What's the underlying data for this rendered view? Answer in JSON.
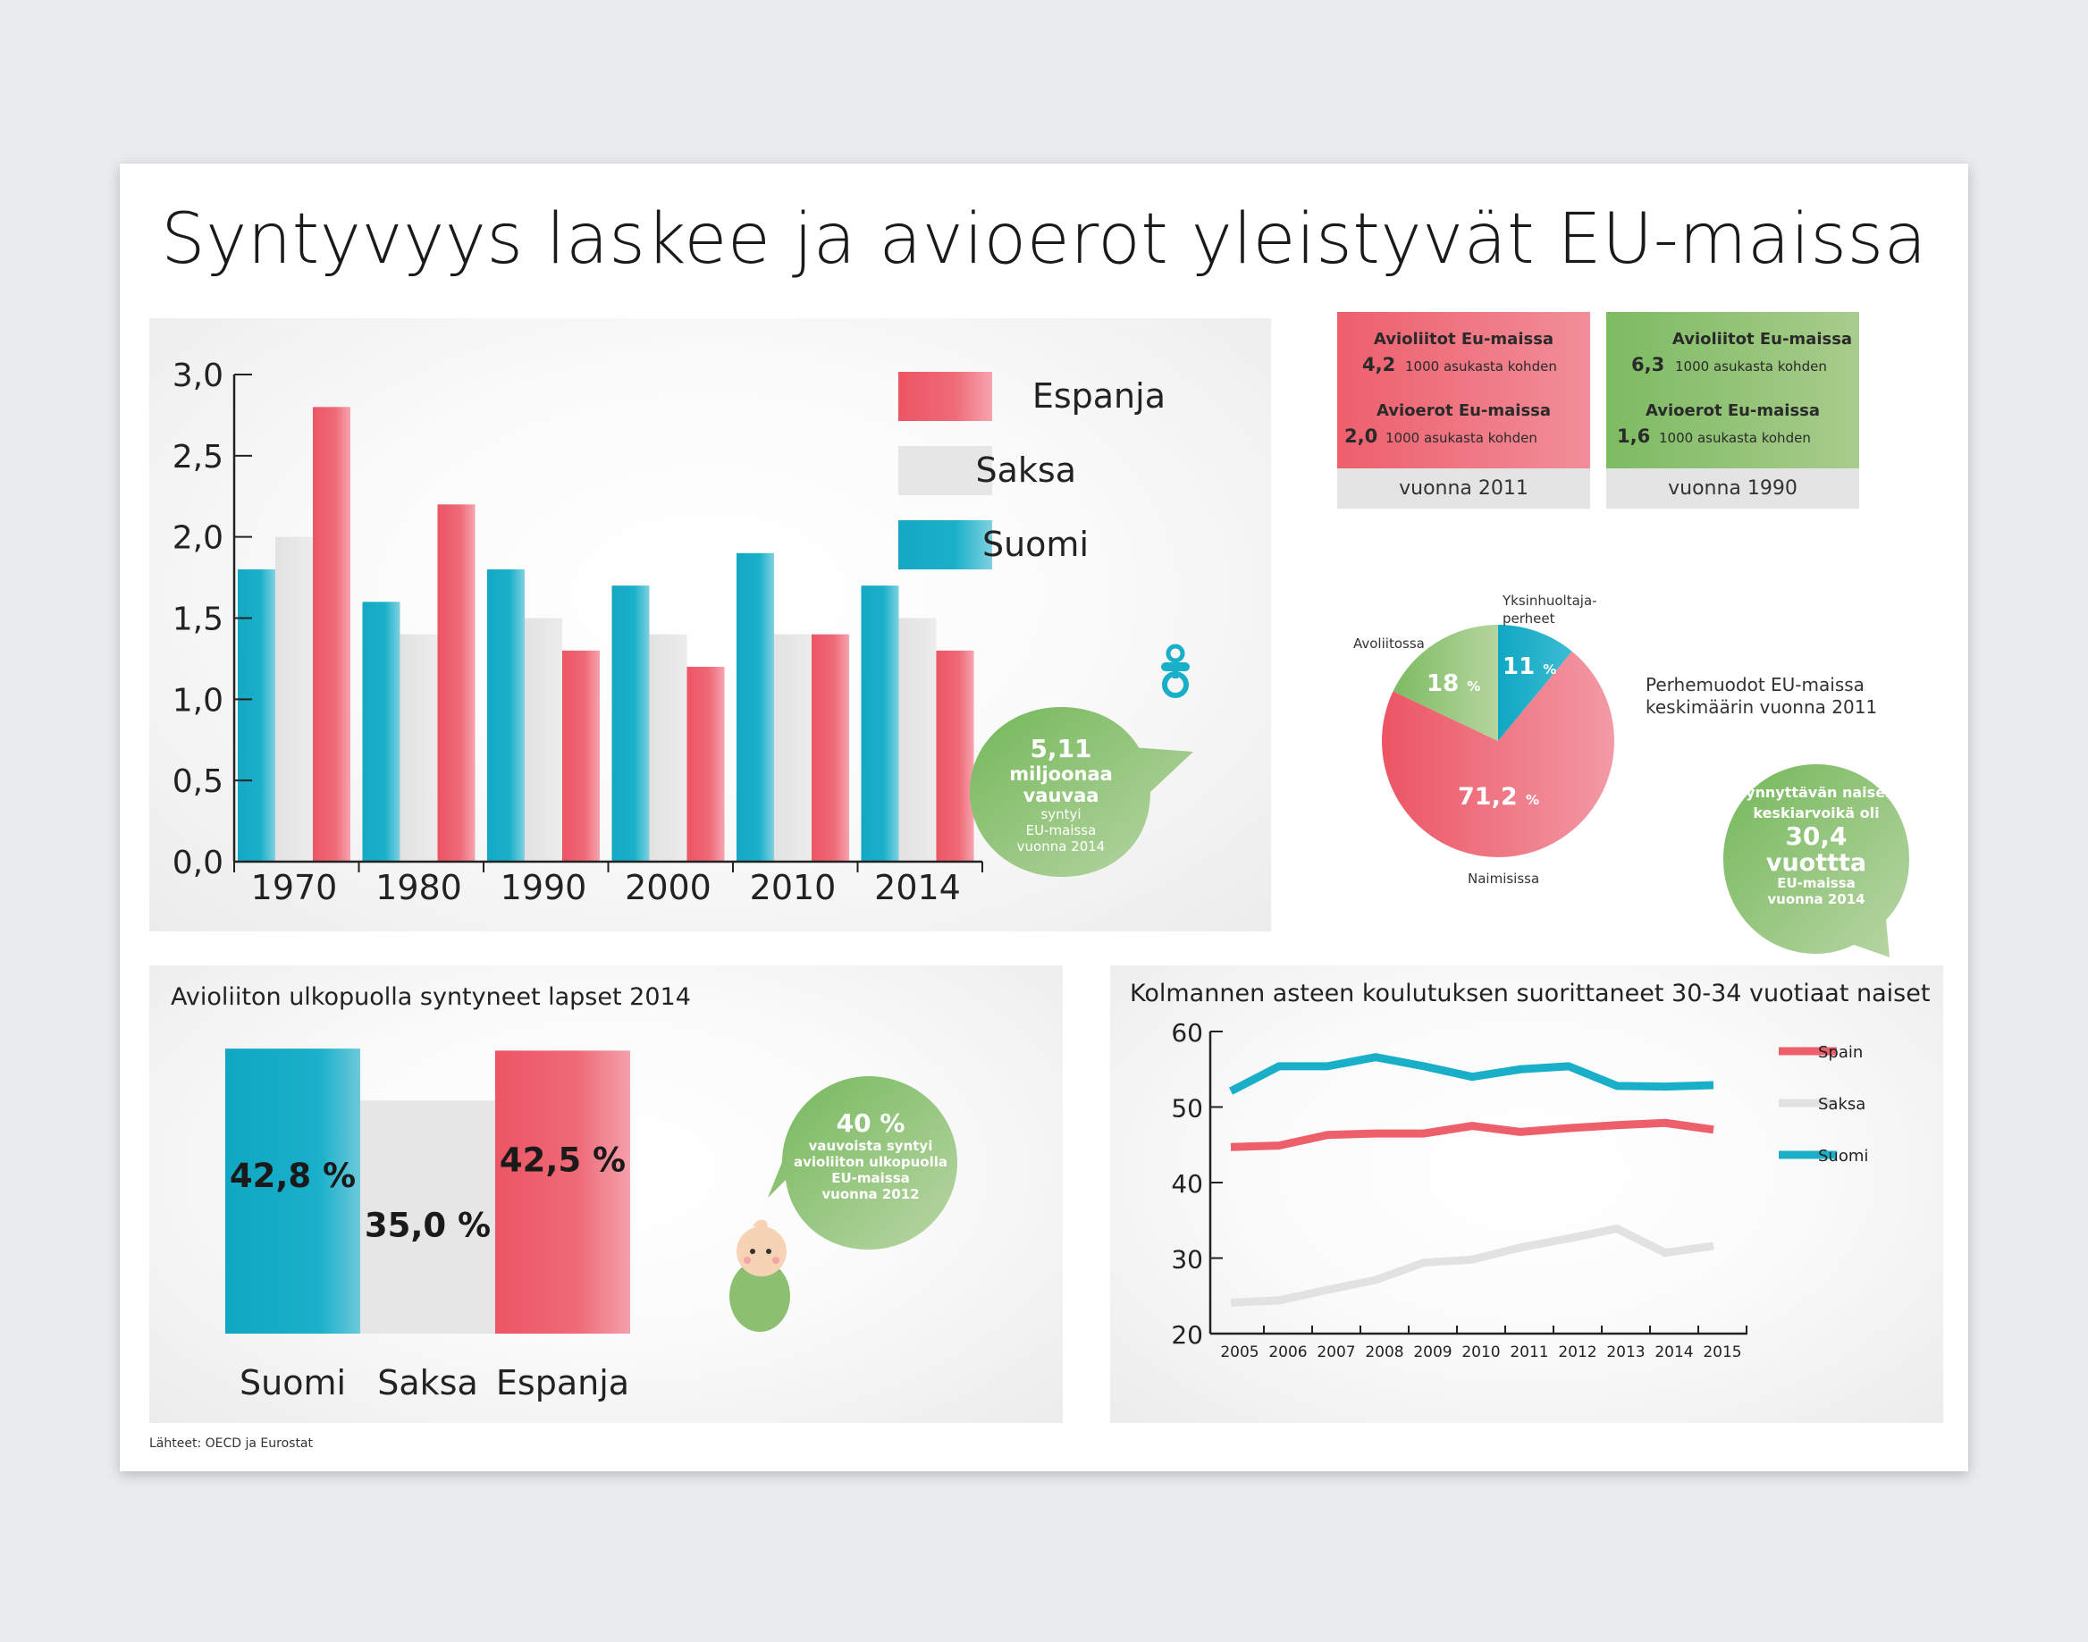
{
  "title": "Syntyvyys laskee ja avioerot yleistyvät EU-maissa",
  "colors": {
    "spain": "#ee5f6c",
    "germany": "#e6e6e6",
    "finland": "#1aafc9",
    "green": "#7dbb62"
  },
  "fertility_legend": [
    "Espanja",
    "Saksa",
    "Suomi"
  ],
  "births_bubble": {
    "value": "5,11",
    "unit": "miljoonaa",
    "word": "vauvaa",
    "line1": "syntyi",
    "line2": "EU-maissa",
    "line3": "vuonna 2014"
  },
  "box_2011": {
    "marriages_title": "Avioliitot Eu-maissa",
    "marriages_value": "4,2",
    "marriages_sub": "1000 asukasta kohden",
    "divorces_title": "Avioerot Eu-maissa",
    "divorces_value": "2,0",
    "divorces_sub": "1000 asukasta kohden",
    "footer": "vuonna 2011"
  },
  "box_1990": {
    "marriages_title": "Avioliitot Eu-maissa",
    "marriages_value": "6,3",
    "marriages_sub": "1000 asukasta kohden",
    "divorces_title": "Avioerot Eu-maissa",
    "divorces_value": "1,6",
    "divorces_sub": "1000 asukasta kohden",
    "footer": "vuonna 1990"
  },
  "family_pie": {
    "caption_line1": "Perhemuodot EU-maissa",
    "caption_line2": "keskimäärin vuonna 2011",
    "label_single_line1": "Yksinhuoltaja-",
    "label_single_line2": "perheet",
    "label_cohab": "Avoliitossa",
    "label_married": "Naimisissa",
    "pct_single": "11",
    "pct_cohab": "18",
    "pct_married": "71,2",
    "pct_sign": "%"
  },
  "mother_bubble": {
    "line1": "synnyttävän naisen",
    "line2": "keskiarvoikä oli",
    "value": "30,4",
    "unit": "vuottta",
    "line3": "EU-maissa",
    "line4": "vuonna 2014"
  },
  "outside_panel": {
    "title": "Avioliiton ulkopuolla syntyneet lapset 2014",
    "labels": [
      "42,8 %",
      "35,0 %",
      "42,5 %"
    ],
    "countries": [
      "Suomi",
      "Saksa",
      "Espanja"
    ]
  },
  "outside_bubble": {
    "value": "40 %",
    "line1": "vauvoista syntyi",
    "line2": "avioliiton ulkopuolla",
    "line3": "EU-maissa",
    "line4": "vuonna 2012"
  },
  "education_panel": {
    "title": "Kolmannen asteen koulutuksen suorittaneet 30-34 vuotiaat naiset"
  },
  "sources": "Lähteet: OECD ja Eurostat",
  "chart_data": [
    {
      "type": "bar",
      "categories": [
        "1970",
        "1980",
        "1990",
        "2000",
        "2010",
        "2014"
      ],
      "series": [
        {
          "name": "Suomi",
          "color": "#1aafc9",
          "values": [
            1.8,
            1.6,
            1.8,
            1.7,
            1.9,
            1.7
          ]
        },
        {
          "name": "Saksa",
          "color": "#e6e6e6",
          "values": [
            2.0,
            1.4,
            1.5,
            1.4,
            1.4,
            1.5
          ]
        },
        {
          "name": "Espanja",
          "color": "#ee5f6c",
          "values": [
            2.8,
            2.2,
            1.3,
            1.2,
            1.4,
            1.3
          ]
        }
      ],
      "yticks": [
        "0,0",
        "0,5",
        "1,0",
        "1,5",
        "2,0",
        "2,5",
        "3,0"
      ],
      "ylim": [
        0,
        3
      ],
      "legend": "right"
    },
    {
      "type": "pie",
      "labels": [
        "Yksinhuoltajaperheet",
        "Naimisissa",
        "Avoliitossa"
      ],
      "values": [
        11,
        71.2,
        18
      ],
      "colors": [
        "#1aafc9",
        "#ee5f6c",
        "#8cc070"
      ]
    },
    {
      "type": "bar",
      "categories": [
        "Suomi",
        "Saksa",
        "Espanja"
      ],
      "values": [
        42.8,
        35.0,
        42.5
      ],
      "colors": [
        "#1aafc9",
        "#e6e6e6",
        "#ee5f6c"
      ]
    },
    {
      "type": "line",
      "x": [
        "2005",
        "2006",
        "2007",
        "2008",
        "2009",
        "2010",
        "2011",
        "2012",
        "2013",
        "2014",
        "2015"
      ],
      "series": [
        {
          "name": "Spain",
          "color": "#ee5f6c",
          "values": [
            44.7,
            44.9,
            46.3,
            46.5,
            46.5,
            47.5,
            46.7,
            47.2,
            47.6,
            47.9,
            47.0
          ]
        },
        {
          "name": "Saksa",
          "color": "#e6e6e6",
          "values": [
            24.1,
            24.4,
            25.8,
            27.1,
            29.4,
            29.8,
            31.4,
            32.6,
            33.9,
            30.7,
            31.6
          ]
        },
        {
          "name": "Suomi",
          "color": "#1aafc9",
          "values": [
            52.1,
            55.4,
            55.4,
            56.6,
            55.4,
            54.0,
            55.0,
            55.4,
            52.8,
            52.7,
            52.9
          ]
        }
      ],
      "yticks": [
        "20",
        "30",
        "40",
        "50",
        "60"
      ],
      "ylim": [
        20,
        60
      ],
      "legend": "right"
    }
  ]
}
